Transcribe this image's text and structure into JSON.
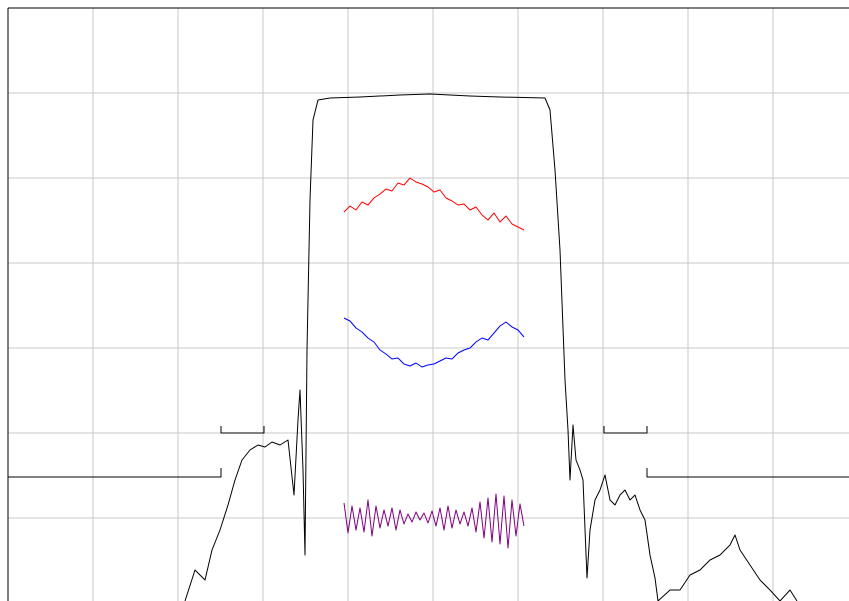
{
  "chart_data": {
    "type": "line",
    "xlim": [
      0,
      841
    ],
    "ylim": [
      -593,
      0
    ],
    "xticks": [
      0,
      85,
      170,
      255,
      340,
      425,
      510,
      595,
      680,
      765
    ],
    "yticks": [
      0,
      -85,
      -170,
      -255,
      -340,
      -425,
      -510
    ],
    "grid": true,
    "grid_color": "#c8c8c8",
    "frame_color": "#000000",
    "series": [
      {
        "color": "#000000",
        "x": [
          177,
          187,
          197,
          204,
          212,
          220,
          227,
          234,
          242,
          250,
          257,
          264,
          272,
          280,
          286,
          290,
          292,
          295,
          297,
          299,
          302,
          305,
          310,
          322,
          352,
          392,
          422,
          462,
          492,
          537,
          542,
          547,
          552,
          557,
          560,
          562,
          565,
          568,
          572,
          575,
          579,
          582,
          587,
          592,
          597,
          602,
          607,
          612,
          617,
          622,
          627,
          632,
          637,
          642,
          647,
          650,
          662,
          672,
          682,
          692,
          702,
          712,
          722,
          727,
          732,
          742,
          752,
          762,
          772,
          782,
          789
        ],
        "values": [
          -593,
          -562,
          -572,
          -542,
          -522,
          -497,
          -472,
          -452,
          -442,
          -437,
          -439,
          -434,
          -437,
          -432,
          -487,
          -412,
          -382,
          -462,
          -547,
          -342,
          -192,
          -112,
          -92,
          -90,
          -89,
          -87,
          -86,
          -88,
          -89,
          -90,
          -102,
          -162,
          -242,
          -372,
          -422,
          -472,
          -417,
          -452,
          -462,
          -472,
          -570,
          -522,
          -492,
          -482,
          -467,
          -492,
          -497,
          -487,
          -482,
          -492,
          -487,
          -502,
          -512,
          -547,
          -570,
          -593,
          -582,
          -582,
          -567,
          -562,
          -552,
          -547,
          -537,
          -527,
          -542,
          -557,
          -572,
          -582,
          -593,
          -582,
          -593
        ]
      },
      {
        "color": "#ff0000",
        "x": [
          336,
          342,
          348,
          354,
          360,
          366,
          372,
          378,
          384,
          390,
          396,
          402,
          408,
          414,
          420,
          426,
          432,
          438,
          444,
          450,
          456,
          462,
          468,
          474,
          480,
          486,
          492,
          498,
          504,
          510,
          516
        ],
        "values": [
          -204,
          -198,
          -202,
          -194,
          -197,
          -190,
          -186,
          -181,
          -183,
          -175,
          -177,
          -170,
          -174,
          -176,
          -179,
          -184,
          -182,
          -190,
          -193,
          -197,
          -196,
          -202,
          -199,
          -207,
          -212,
          -205,
          -214,
          -208,
          -216,
          -219,
          -222
        ]
      },
      {
        "color": "#0000ff",
        "x": [
          336,
          342,
          348,
          354,
          360,
          366,
          372,
          378,
          384,
          390,
          396,
          402,
          408,
          414,
          420,
          426,
          432,
          438,
          444,
          450,
          456,
          462,
          468,
          474,
          480,
          486,
          492,
          498,
          504,
          510,
          516
        ],
        "values": [
          -310,
          -313,
          -320,
          -324,
          -330,
          -334,
          -342,
          -346,
          -351,
          -350,
          -356,
          -358,
          -355,
          -359,
          -357,
          -356,
          -353,
          -350,
          -351,
          -345,
          -342,
          -340,
          -334,
          -330,
          -332,
          -325,
          -318,
          -314,
          -319,
          -322,
          -329
        ]
      },
      {
        "color": "#800080",
        "x": [
          336,
          340,
          344,
          348,
          352,
          356,
          360,
          364,
          368,
          372,
          376,
          380,
          384,
          388,
          392,
          396,
          400,
          404,
          408,
          412,
          416,
          420,
          424,
          428,
          432,
          436,
          440,
          444,
          448,
          452,
          456,
          460,
          464,
          468,
          472,
          476,
          480,
          484,
          488,
          492,
          496,
          500,
          504,
          508,
          512,
          516
        ],
        "values": [
          -495,
          -525,
          -498,
          -522,
          -500,
          -524,
          -492,
          -528,
          -498,
          -520,
          -502,
          -518,
          -500,
          -522,
          -502,
          -516,
          -506,
          -514,
          -504,
          -512,
          -505,
          -515,
          -503,
          -518,
          -500,
          -522,
          -498,
          -520,
          -502,
          -516,
          -504,
          -518,
          -500,
          -524,
          -494,
          -530,
          -490,
          -534,
          -486,
          -536,
          -488,
          -540,
          -492,
          -528,
          -496,
          -518
        ]
      },
      {
        "color": "#000000",
        "x": [
          0,
          213,
          213,
          213,
          213,
          213,
          256,
          256,
          400,
          596,
          596,
          639,
          639,
          639,
          639,
          639,
          841
        ],
        "values": [
          -469,
          -469,
          -460,
          null,
          -418,
          -425,
          -425,
          -418,
          null,
          -418,
          -425,
          -425,
          -418,
          null,
          -460,
          -469,
          -469
        ]
      }
    ]
  }
}
